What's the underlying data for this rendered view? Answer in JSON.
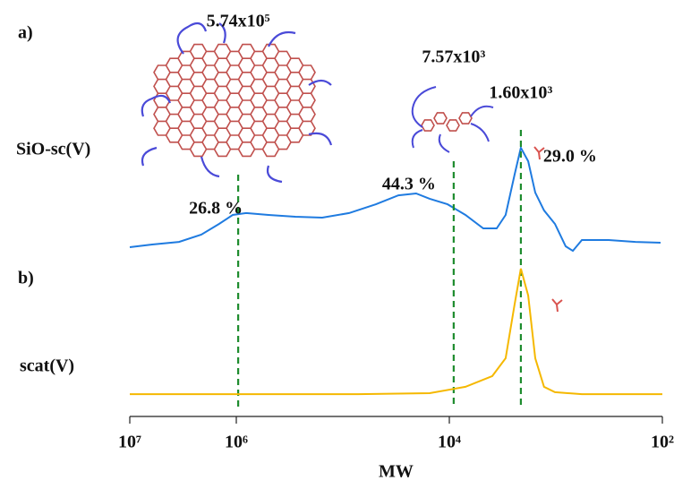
{
  "chart_data": [
    {
      "type": "line",
      "label": "a)",
      "log_x": true,
      "xlim": [
        10000000,
        100
      ],
      "ylim": [
        0,
        100
      ],
      "series": [
        {
          "name": "SiO-sc(V)",
          "color": "#1f7be0",
          "x": [
            10000000,
            6170000,
            3450000,
            2130000,
            1450000,
            1080000,
            809000,
            498000,
            279000,
            156000,
            87300,
            48900,
            30100,
            20500,
            15300,
            10400,
            7060,
            4800,
            3590,
            2960,
            2440,
            2130,
            1820,
            1560,
            1290,
            1020,
            809,
            692,
            570,
            319,
            179,
            104
          ],
          "values": [
            6.9,
            9.2,
            11.5,
            17.7,
            26.9,
            34.6,
            36.2,
            34.6,
            33.1,
            32.3,
            36.2,
            43.8,
            51.5,
            53.1,
            48.5,
            43.8,
            34.6,
            23.1,
            23.1,
            34.6,
            69.2,
            92.3,
            80.8,
            53.8,
            38.5,
            26.9,
            7.7,
            3.8,
            13.1,
            13.1,
            11.5,
            10.8
          ]
        }
      ],
      "markers": [
        {
          "x": 960000,
          "label": "5.74x10⁵",
          "percent": "26.8 %",
          "color": "#1e8c2e"
        },
        {
          "x": 9100,
          "label": "7.57x10³",
          "percent": "44.3 %",
          "color": "#1e8c2e"
        },
        {
          "x": 2130,
          "label": "1.60x10³",
          "percent": "29.0 %",
          "color": "#1e8c2e"
        }
      ]
    },
    {
      "type": "line",
      "label": "b)",
      "log_x": true,
      "xlim": [
        10000000,
        100
      ],
      "ylim": [
        0,
        100
      ],
      "xlabel": "MW",
      "xticks": [
        {
          "value": 10000000,
          "label": "10⁷"
        },
        {
          "value": 1000000,
          "label": "10⁶"
        },
        {
          "value": 10000,
          "label": "10⁴"
        },
        {
          "value": 100,
          "label": "10²"
        }
      ],
      "series": [
        {
          "name": "scat(V)",
          "color": "#f5b800",
          "x": [
            10000000,
            72000,
            15300,
            7060,
            3950,
            2960,
            2440,
            2130,
            1820,
            1560,
            1290,
            1020,
            570,
            100
          ],
          "values": [
            3.3,
            3.3,
            4,
            8.7,
            16.7,
            30,
            70,
            96.7,
            76.7,
            30,
            8.7,
            4.7,
            3.3,
            3.3
          ]
        }
      ]
    }
  ]
}
